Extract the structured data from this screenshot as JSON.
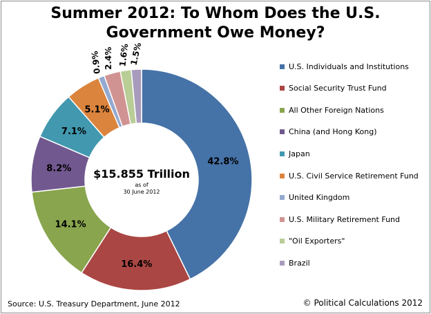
{
  "title_line1": "Summer 2012: To Whom Does the U.S.",
  "title_line2": "Government Owe Money?",
  "center": {
    "total": "$15.855 Trillion",
    "asof_line1": "as of",
    "asof_line2": "30 June 2012"
  },
  "source": "Source: U.S. Treasury Department, June 2012",
  "copyright": "© Political Calculations 2012",
  "chart_data": {
    "type": "pie",
    "title": "Summer 2012: To Whom Does the U.S. Government Owe Money?",
    "legend_position": "right",
    "categories": [
      "U.S. Individuals and Institutions",
      "Social Security Trust Fund",
      "All Other Foreign Nations",
      "China (and Hong Kong)",
      "Japan",
      "U.S. Civil Service Retirement Fund",
      "United Kingdom",
      "U.S. Military Retirement Fund",
      "\"Oil Exporters\"",
      "Brazil"
    ],
    "values": [
      42.8,
      16.4,
      14.1,
      8.2,
      7.1,
      5.1,
      0.9,
      2.4,
      1.6,
      1.5
    ],
    "labels": [
      "42.8%",
      "16.4%",
      "14.1%",
      "8.2%",
      "7.1%",
      "5.1%",
      "0.9%",
      "2.4%",
      "1.6%",
      "1.5%"
    ],
    "colors": [
      "#4572A7",
      "#AA4643",
      "#89A54E",
      "#71588F",
      "#4198AF",
      "#DB843D",
      "#93A9CF",
      "#D19392",
      "#B9CD96",
      "#A99BBD"
    ]
  }
}
